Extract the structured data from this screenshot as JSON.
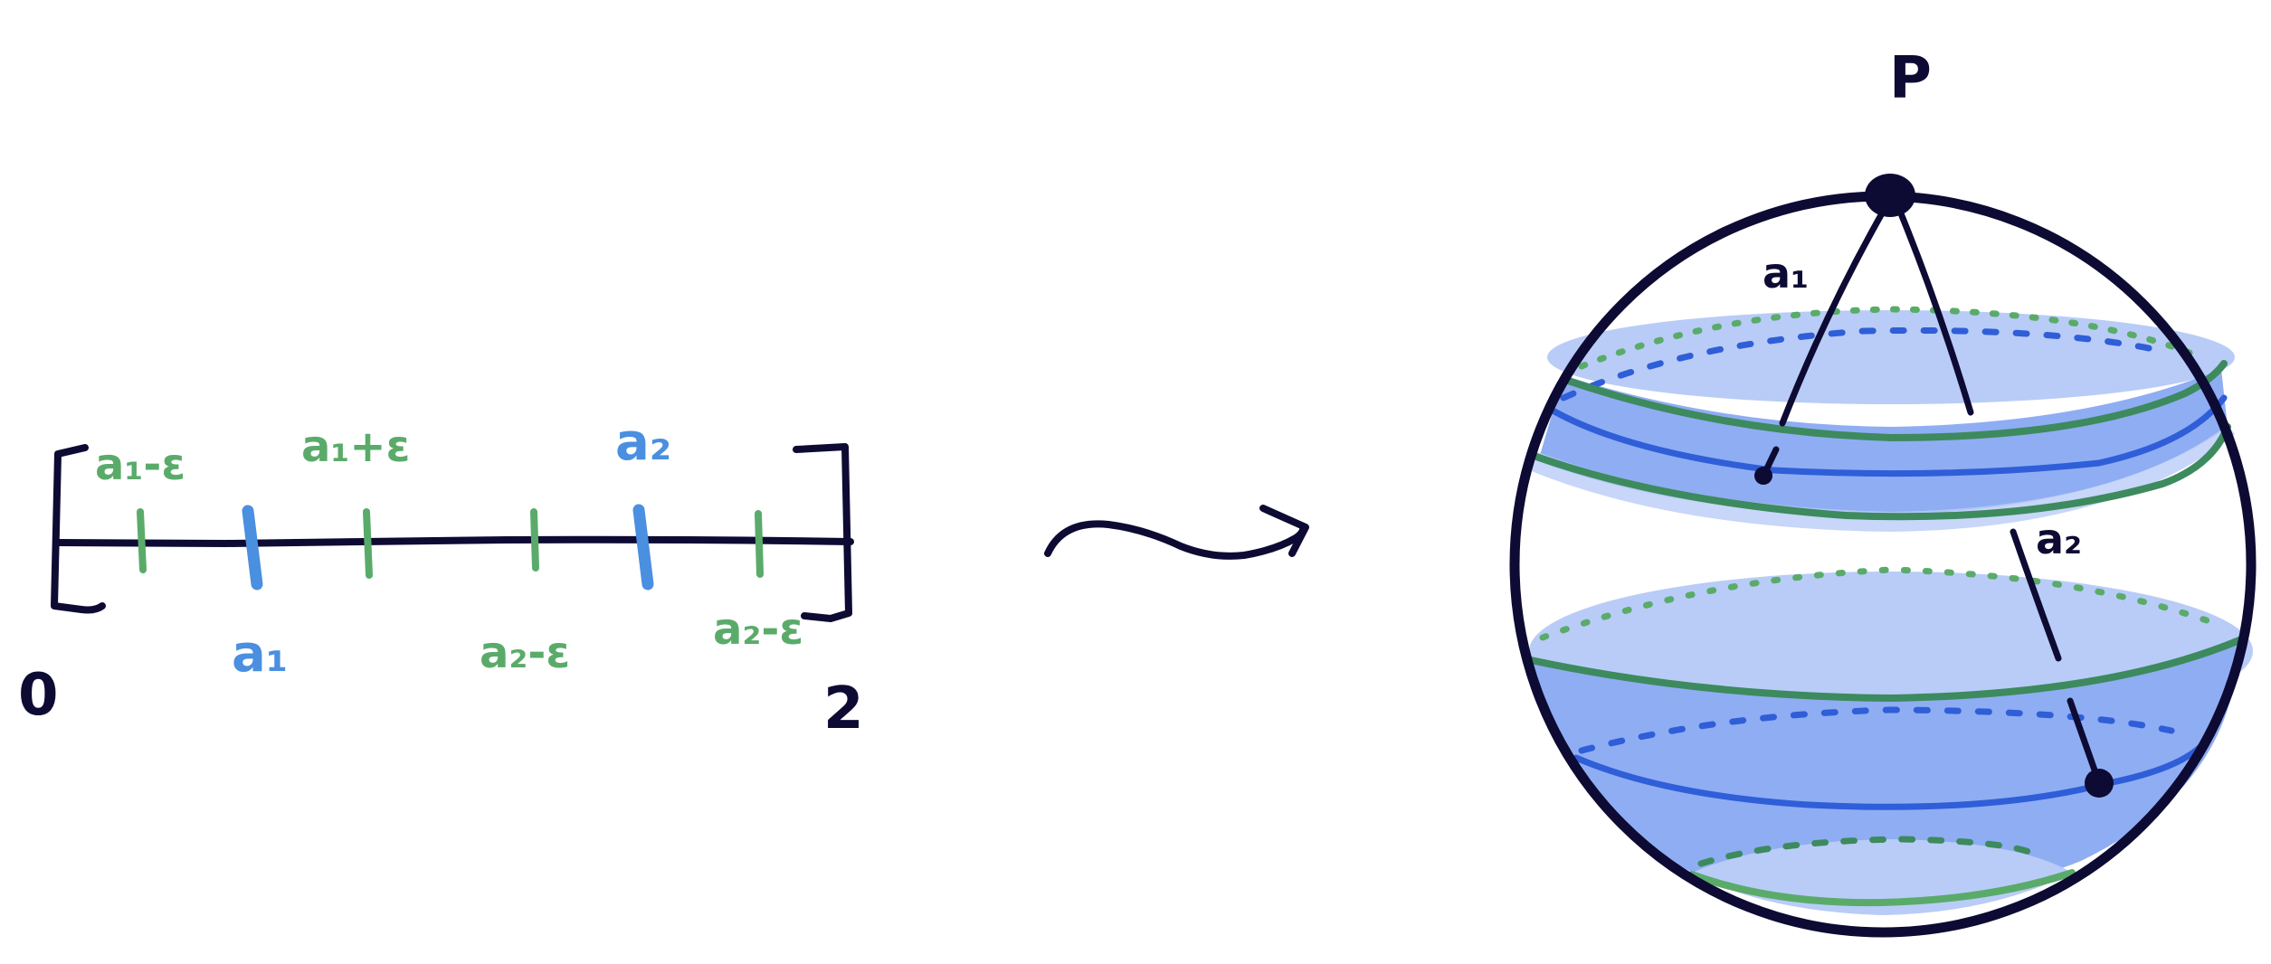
{
  "interval": {
    "left_endpoint": "0",
    "right_endpoint": "2",
    "blue_marks": [
      "a₁",
      "a₂"
    ],
    "green_marks": [
      "a₁-ε",
      "a₁+ε",
      "a₂-ε",
      "a₂-ε"
    ]
  },
  "sphere": {
    "top_point": "P",
    "band_labels": [
      "a₁",
      "a₂"
    ]
  },
  "colors": {
    "ink": "#0d0b33",
    "green": "#5aab6a",
    "blue": "#4a8fe0",
    "band_light": "#b9ccf7",
    "band_medium": "#8fadf3",
    "band_line": "#2f5ed8",
    "band_edge_green": "#3d8a5e"
  },
  "arrow_icon": "squiggly-right-arrow-icon"
}
